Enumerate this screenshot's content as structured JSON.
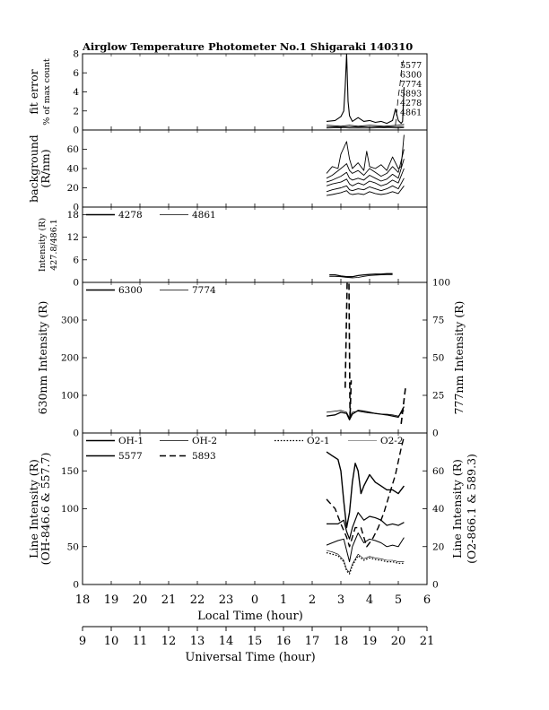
{
  "title": "Airglow Temperature Photometer No.1  Shigaraki  140310",
  "colors": {
    "ink": "#000000",
    "background": "#ffffff"
  },
  "chart_data": {
    "type": "line",
    "local_axis": {
      "label": "Local Time (hour)",
      "range": [
        18,
        30
      ],
      "ticks": [
        "18",
        "19",
        "20",
        "21",
        "22",
        "23",
        "0",
        "1",
        "2",
        "3",
        "4",
        "5",
        "6"
      ]
    },
    "ut_axis": {
      "label": "Universal Time (hour)",
      "ticks": [
        "9",
        "10",
        "11",
        "12",
        "13",
        "14",
        "15",
        "16",
        "17",
        "18",
        "19",
        "20",
        "21"
      ]
    },
    "panels": [
      {
        "id": "fit",
        "ylabel_lines": [
          "fit error",
          "% of max count"
        ],
        "ylim": [
          0,
          8
        ],
        "ticks": [
          0,
          2,
          4,
          6,
          8
        ],
        "legend": [
          "5577",
          "6300",
          "7774",
          "5893",
          "4278",
          "4861"
        ],
        "series": [
          {
            "style": "solid",
            "width": 1.1,
            "x": [
              26.5,
              26.8,
              27.0,
              27.1,
              27.15,
              27.2,
              27.25,
              27.3,
              27.4,
              27.6,
              27.8,
              28.0,
              28.2,
              28.4,
              28.6,
              28.8,
              28.9,
              29.0,
              29.1,
              29.15,
              29.2
            ],
            "y": [
              0.9,
              1.0,
              1.4,
              2.0,
              4.5,
              8.0,
              3.0,
              1.5,
              0.9,
              1.3,
              0.9,
              1.0,
              0.8,
              0.9,
              0.7,
              1.0,
              2.2,
              1.0,
              0.7,
              0.9,
              4.5
            ]
          },
          {
            "style": "solid",
            "width": 0.8,
            "x": [
              26.5,
              27.0,
              27.3,
              27.6,
              28.0,
              28.5,
              29.0,
              29.2
            ],
            "y": [
              0.5,
              0.4,
              0.5,
              0.4,
              0.5,
              0.4,
              0.5,
              0.6
            ]
          },
          {
            "style": "solid",
            "width": 0.8,
            "x": [
              26.5,
              27.0,
              27.3,
              27.6,
              28.0,
              28.5,
              29.0,
              29.2
            ],
            "y": [
              0.3,
              0.35,
              0.3,
              0.35,
              0.3,
              0.35,
              0.3,
              0.4
            ]
          },
          {
            "style": "solid",
            "width": 0.8,
            "x": [
              26.5,
              27.0,
              27.3,
              27.6,
              28.0,
              28.5,
              29.0,
              29.2
            ],
            "y": [
              0.2,
              0.25,
              0.2,
              0.22,
              0.2,
              0.24,
              0.2,
              0.25
            ]
          },
          {
            "style": "dashed",
            "width": 0.8,
            "x": [
              28.9,
              28.95,
              29.0,
              29.05,
              29.1,
              29.15,
              29.2
            ],
            "y": [
              0.5,
              2.0,
              3.5,
              4.5,
              6.0,
              7.0,
              7.5
            ]
          }
        ]
      },
      {
        "id": "background",
        "ylabel_lines": [
          "background",
          "(R/nm)"
        ],
        "ylim": [
          0,
          80
        ],
        "ticks": [
          0,
          20,
          40,
          60
        ],
        "series": [
          {
            "style": "solid",
            "width": 0.9,
            "x": [
              26.5,
              26.7,
              26.9,
              27.0,
              27.2,
              27.3,
              27.4,
              27.6,
              27.8,
              27.9,
              28.0,
              28.2,
              28.4,
              28.6,
              28.8,
              29.0,
              29.1,
              29.2
            ],
            "y": [
              35,
              42,
              40,
              55,
              68,
              50,
              40,
              46,
              38,
              58,
              42,
              40,
              44,
              38,
              52,
              40,
              42,
              75
            ]
          },
          {
            "style": "solid",
            "width": 0.9,
            "x": [
              26.5,
              26.7,
              27.0,
              27.2,
              27.3,
              27.4,
              27.6,
              27.8,
              28.0,
              28.2,
              28.4,
              28.6,
              28.8,
              29.0,
              29.2
            ],
            "y": [
              30,
              33,
              40,
              45,
              38,
              35,
              38,
              33,
              40,
              36,
              32,
              35,
              42,
              36,
              60
            ]
          },
          {
            "style": "solid",
            "width": 0.9,
            "x": [
              26.5,
              26.7,
              27.0,
              27.2,
              27.3,
              27.4,
              27.6,
              27.8,
              28.0,
              28.2,
              28.4,
              28.6,
              28.8,
              29.0,
              29.2
            ],
            "y": [
              26,
              28,
              32,
              36,
              30,
              28,
              30,
              28,
              33,
              30,
              27,
              29,
              34,
              30,
              50
            ]
          },
          {
            "style": "solid",
            "width": 0.9,
            "x": [
              26.5,
              26.7,
              27.0,
              27.2,
              27.3,
              27.4,
              27.6,
              27.8,
              28.0,
              28.2,
              28.4,
              28.6,
              28.8,
              29.0,
              29.2
            ],
            "y": [
              22,
              24,
              26,
              29,
              24,
              22,
              25,
              23,
              27,
              25,
              22,
              24,
              28,
              25,
              40
            ]
          },
          {
            "style": "solid",
            "width": 0.9,
            "x": [
              26.5,
              26.7,
              27.0,
              27.2,
              27.3,
              27.4,
              27.6,
              27.8,
              28.0,
              28.2,
              28.4,
              28.6,
              28.8,
              29.0,
              29.2
            ],
            "y": [
              16,
              18,
              20,
              22,
              18,
              17,
              19,
              18,
              21,
              19,
              17,
              19,
              22,
              19,
              30
            ]
          },
          {
            "style": "solid",
            "width": 0.9,
            "x": [
              26.5,
              26.7,
              27.0,
              27.2,
              27.3,
              27.4,
              27.6,
              27.8,
              28.0,
              28.2,
              28.4,
              28.6,
              28.8,
              29.0,
              29.2
            ],
            "y": [
              12,
              13,
              15,
              17,
              14,
              13,
              14,
              13,
              16,
              14,
              13,
              14,
              16,
              14,
              22
            ]
          }
        ]
      },
      {
        "id": "blue",
        "ylabel_lines": [
          "Intensity (R)",
          "427.8/486.1"
        ],
        "ylim": [
          0,
          20
        ],
        "ticks": [
          0,
          6,
          12,
          18
        ],
        "legend": [
          "4278",
          "4861"
        ],
        "series": [
          {
            "style": "solid",
            "width": 1.3,
            "x": [
              26.6,
              26.8,
              27.0,
              27.2,
              27.4,
              27.6,
              27.8,
              28.0,
              28.2,
              28.4,
              28.6,
              28.8
            ],
            "y": [
              2.0,
              2.0,
              1.7,
              1.5,
              1.5,
              1.8,
              2.0,
              2.1,
              2.2,
              2.2,
              2.3,
              2.3
            ]
          },
          {
            "style": "solid",
            "width": 0.8,
            "x": [
              26.6,
              26.8,
              27.0,
              27.2,
              27.4,
              27.6,
              27.8,
              28.0,
              28.2,
              28.4,
              28.6,
              28.8
            ],
            "y": [
              1.6,
              1.6,
              1.5,
              1.3,
              1.2,
              1.3,
              1.6,
              1.8,
              1.9,
              2.0,
              2.0,
              2.0
            ]
          }
        ]
      },
      {
        "id": "red",
        "ylabel_lines": [
          "630nm Intensity (R)"
        ],
        "ylim": [
          0,
          400
        ],
        "ticks": [
          0,
          100,
          200,
          300
        ],
        "y2label_lines": [
          "777nm Intensity (R)"
        ],
        "y2lim": [
          0,
          100
        ],
        "y2ticks": [
          0,
          25,
          50,
          75,
          100
        ],
        "legend": [
          "6300",
          "7774"
        ],
        "series": [
          {
            "style": "solid",
            "width": 1.3,
            "x": [
              26.5,
              26.8,
              27.0,
              27.2,
              27.3,
              27.4,
              27.6,
              27.8,
              28.0,
              28.2,
              28.4,
              28.6,
              28.8,
              29.0,
              29.2
            ],
            "y": [
              45,
              48,
              55,
              52,
              35,
              50,
              60,
              58,
              55,
              52,
              50,
              48,
              45,
              42,
              70
            ]
          },
          {
            "style": "solid",
            "width": 0.8,
            "x": [
              26.5,
              26.8,
              27.0,
              27.2,
              27.3,
              27.4,
              27.6,
              27.8,
              28.0,
              28.2,
              28.4,
              28.6,
              28.8,
              29.0,
              29.2
            ],
            "y": [
              55,
              58,
              60,
              55,
              40,
              55,
              58,
              55,
              53,
              52,
              50,
              50,
              48,
              45,
              60
            ]
          },
          {
            "style": "dashed",
            "width": 1.6,
            "axis": "right",
            "x": [
              27.15,
              27.22,
              27.28,
              27.32,
              27.36
            ],
            "y": [
              30,
              100,
              100,
              10,
              35
            ]
          },
          {
            "style": "dashed",
            "width": 1.6,
            "axis": "right",
            "x": [
              29.1,
              29.15,
              29.2,
              29.25
            ],
            "y": [
              6,
              14,
              22,
              30
            ]
          }
        ]
      },
      {
        "id": "line",
        "ylabel_lines": [
          "Line Intensity (R)",
          "(OH-846.6 & 557.7)"
        ],
        "ylim": [
          0,
          200
        ],
        "ticks": [
          0,
          50,
          100,
          150
        ],
        "y2label_lines": [
          "Line Intensity (R)",
          "(O2-866.1 & 589.3)"
        ],
        "y2lim": [
          0,
          80
        ],
        "y2ticks": [
          0,
          20,
          40,
          60
        ],
        "legend": [
          "OH-1",
          "OH-2",
          "O2-1",
          "O2-2",
          "5577",
          "5893"
        ],
        "series": [
          {
            "style": "solid",
            "width": 1.4,
            "x": [
              26.5,
              26.7,
              26.9,
              27.0,
              27.1,
              27.2,
              27.3,
              27.4,
              27.5,
              27.6,
              27.7,
              27.8,
              28.0,
              28.2,
              28.4,
              28.6,
              28.8,
              29.0,
              29.2
            ],
            "y": [
              175,
              170,
              165,
              150,
              110,
              75,
              95,
              135,
              160,
              150,
              120,
              130,
              145,
              135,
              130,
              125,
              125,
              120,
              130
            ]
          },
          {
            "style": "solid",
            "width": 1.2,
            "x": [
              26.5,
              26.7,
              26.9,
              27.1,
              27.2,
              27.3,
              27.4,
              27.6,
              27.8,
              28.0,
              28.2,
              28.4,
              28.6,
              28.8,
              29.0,
              29.2
            ],
            "y": [
              80,
              80,
              80,
              85,
              70,
              60,
              75,
              95,
              85,
              90,
              88,
              85,
              78,
              80,
              78,
              82
            ]
          },
          {
            "style": "solid",
            "width": 1.0,
            "x": [
              26.5,
              26.7,
              26.9,
              27.1,
              27.2,
              27.3,
              27.4,
              27.6,
              27.8,
              28.0,
              28.2,
              28.4,
              28.6,
              28.8,
              29.0,
              29.2
            ],
            "y": [
              52,
              55,
              58,
              60,
              45,
              30,
              50,
              68,
              55,
              60,
              58,
              55,
              50,
              52,
              50,
              62
            ]
          },
          {
            "style": "dotted",
            "width": 1.2,
            "x": [
              26.5,
              26.7,
              26.9,
              27.1,
              27.2,
              27.3,
              27.4,
              27.6,
              27.8,
              28.0,
              28.2,
              28.4,
              28.6,
              28.8,
              29.0,
              29.2
            ],
            "y": [
              42,
              40,
              38,
              30,
              18,
              14,
              25,
              38,
              32,
              35,
              33,
              32,
              30,
              30,
              28,
              28
            ]
          },
          {
            "style": "solid",
            "width": 0.6,
            "x": [
              26.5,
              26.7,
              26.9,
              27.1,
              27.2,
              27.3,
              27.4,
              27.6,
              27.8,
              28.0,
              28.2,
              28.4,
              28.6,
              28.8,
              29.0,
              29.2
            ],
            "y": [
              45,
              43,
              40,
              32,
              20,
              16,
              27,
              40,
              34,
              37,
              35,
              34,
              32,
              32,
              30,
              30
            ]
          },
          {
            "style": "dashed",
            "width": 1.4,
            "axis": "right",
            "x": [
              26.5,
              26.8,
              27.0,
              27.2,
              27.3,
              27.5,
              27.7,
              27.9,
              28.1,
              28.3,
              28.5,
              28.7,
              28.9,
              29.0,
              29.1,
              29.2
            ],
            "y": [
              45,
              40,
              32,
              25,
              20,
              30,
              30,
              20,
              24,
              30,
              38,
              48,
              58,
              65,
              72,
              78
            ]
          }
        ]
      }
    ]
  }
}
